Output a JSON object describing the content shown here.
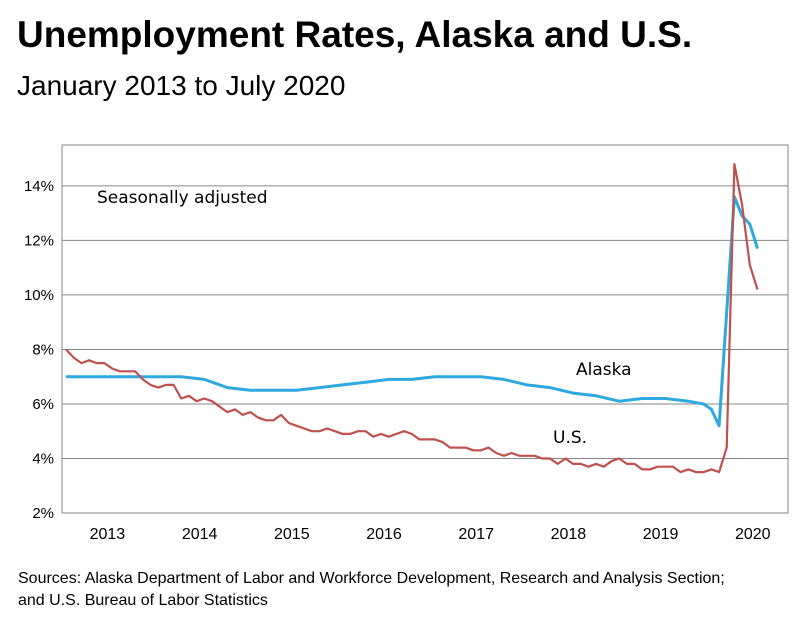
{
  "chart_data": {
    "type": "line",
    "title": "Unemployment Rates, Alaska and U.S.",
    "subtitle": "January 2013 to July 2020",
    "annotation": "Seasonally adjusted",
    "sources": "Sources: Alaska Department of Labor and Workforce Development, Research and Analysis Section; and U.S. Bureau of Labor Statistics",
    "y_ticks": [
      "2%",
      "4%",
      "6%",
      "8%",
      "10%",
      "12%",
      "14%"
    ],
    "ylim": [
      2,
      15.5
    ],
    "x_labels": [
      "2013",
      "2014",
      "2015",
      "2016",
      "2017",
      "2018",
      "2019",
      "2020"
    ],
    "grid": true,
    "series": [
      {
        "name": "Alaska",
        "color": "#2ea8df",
        "points": [
          [
            "2013-01",
            7.0
          ],
          [
            "2013-04",
            7.0
          ],
          [
            "2013-07",
            7.0
          ],
          [
            "2013-10",
            7.0
          ],
          [
            "2014-01",
            7.0
          ],
          [
            "2014-04",
            7.0
          ],
          [
            "2014-07",
            6.9
          ],
          [
            "2014-10",
            6.6
          ],
          [
            "2015-01",
            6.5
          ],
          [
            "2015-04",
            6.5
          ],
          [
            "2015-07",
            6.5
          ],
          [
            "2015-10",
            6.6
          ],
          [
            "2016-01",
            6.7
          ],
          [
            "2016-04",
            6.8
          ],
          [
            "2016-07",
            6.9
          ],
          [
            "2016-10",
            6.9
          ],
          [
            "2017-01",
            7.0
          ],
          [
            "2017-04",
            7.0
          ],
          [
            "2017-07",
            7.0
          ],
          [
            "2017-10",
            6.9
          ],
          [
            "2018-01",
            6.7
          ],
          [
            "2018-04",
            6.6
          ],
          [
            "2018-07",
            6.4
          ],
          [
            "2018-10",
            6.3
          ],
          [
            "2019-01",
            6.1
          ],
          [
            "2019-04",
            6.2
          ],
          [
            "2019-07",
            6.2
          ],
          [
            "2019-10",
            6.1
          ],
          [
            "2019-12",
            6.0
          ],
          [
            "2020-01",
            5.8
          ],
          [
            "2020-02",
            5.2
          ],
          [
            "2020-04",
            13.6
          ],
          [
            "2020-05",
            12.9
          ],
          [
            "2020-06",
            12.6
          ],
          [
            "2020-07",
            11.7
          ]
        ]
      },
      {
        "name": "U.S.",
        "color": "#c0504d",
        "points": [
          [
            "2013-01",
            8.0
          ],
          [
            "2013-02",
            7.7
          ],
          [
            "2013-03",
            7.5
          ],
          [
            "2013-04",
            7.6
          ],
          [
            "2013-05",
            7.5
          ],
          [
            "2013-06",
            7.5
          ],
          [
            "2013-07",
            7.3
          ],
          [
            "2013-08",
            7.2
          ],
          [
            "2013-09",
            7.2
          ],
          [
            "2013-10",
            7.2
          ],
          [
            "2013-11",
            6.9
          ],
          [
            "2013-12",
            6.7
          ],
          [
            "2014-01",
            6.6
          ],
          [
            "2014-02",
            6.7
          ],
          [
            "2014-03",
            6.7
          ],
          [
            "2014-04",
            6.2
          ],
          [
            "2014-05",
            6.3
          ],
          [
            "2014-06",
            6.1
          ],
          [
            "2014-07",
            6.2
          ],
          [
            "2014-08",
            6.1
          ],
          [
            "2014-09",
            5.9
          ],
          [
            "2014-10",
            5.7
          ],
          [
            "2014-11",
            5.8
          ],
          [
            "2014-12",
            5.6
          ],
          [
            "2015-01",
            5.7
          ],
          [
            "2015-02",
            5.5
          ],
          [
            "2015-03",
            5.4
          ],
          [
            "2015-04",
            5.4
          ],
          [
            "2015-05",
            5.6
          ],
          [
            "2015-06",
            5.3
          ],
          [
            "2015-07",
            5.2
          ],
          [
            "2015-08",
            5.1
          ],
          [
            "2015-09",
            5.0
          ],
          [
            "2015-10",
            5.0
          ],
          [
            "2015-11",
            5.1
          ],
          [
            "2015-12",
            5.0
          ],
          [
            "2016-01",
            4.9
          ],
          [
            "2016-02",
            4.9
          ],
          [
            "2016-03",
            5.0
          ],
          [
            "2016-04",
            5.0
          ],
          [
            "2016-05",
            4.8
          ],
          [
            "2016-06",
            4.9
          ],
          [
            "2016-07",
            4.8
          ],
          [
            "2016-08",
            4.9
          ],
          [
            "2016-09",
            5.0
          ],
          [
            "2016-10",
            4.9
          ],
          [
            "2016-11",
            4.7
          ],
          [
            "2016-12",
            4.7
          ],
          [
            "2017-01",
            4.7
          ],
          [
            "2017-02",
            4.6
          ],
          [
            "2017-03",
            4.4
          ],
          [
            "2017-04",
            4.4
          ],
          [
            "2017-05",
            4.4
          ],
          [
            "2017-06",
            4.3
          ],
          [
            "2017-07",
            4.3
          ],
          [
            "2017-08",
            4.4
          ],
          [
            "2017-09",
            4.2
          ],
          [
            "2017-10",
            4.1
          ],
          [
            "2017-11",
            4.2
          ],
          [
            "2017-12",
            4.1
          ],
          [
            "2018-01",
            4.1
          ],
          [
            "2018-02",
            4.1
          ],
          [
            "2018-03",
            4.0
          ],
          [
            "2018-04",
            4.0
          ],
          [
            "2018-05",
            3.8
          ],
          [
            "2018-06",
            4.0
          ],
          [
            "2018-07",
            3.8
          ],
          [
            "2018-08",
            3.8
          ],
          [
            "2018-09",
            3.7
          ],
          [
            "2018-10",
            3.8
          ],
          [
            "2018-11",
            3.7
          ],
          [
            "2018-12",
            3.9
          ],
          [
            "2019-01",
            4.0
          ],
          [
            "2019-02",
            3.8
          ],
          [
            "2019-03",
            3.8
          ],
          [
            "2019-04",
            3.6
          ],
          [
            "2019-05",
            3.6
          ],
          [
            "2019-06",
            3.7
          ],
          [
            "2019-07",
            3.7
          ],
          [
            "2019-08",
            3.7
          ],
          [
            "2019-09",
            3.5
          ],
          [
            "2019-10",
            3.6
          ],
          [
            "2019-11",
            3.5
          ],
          [
            "2019-12",
            3.5
          ],
          [
            "2020-01",
            3.6
          ],
          [
            "2020-02",
            3.5
          ],
          [
            "2020-03",
            4.4
          ],
          [
            "2020-04",
            14.8
          ],
          [
            "2020-05",
            13.3
          ],
          [
            "2020-06",
            11.1
          ],
          [
            "2020-07",
            10.2
          ]
        ]
      }
    ]
  }
}
